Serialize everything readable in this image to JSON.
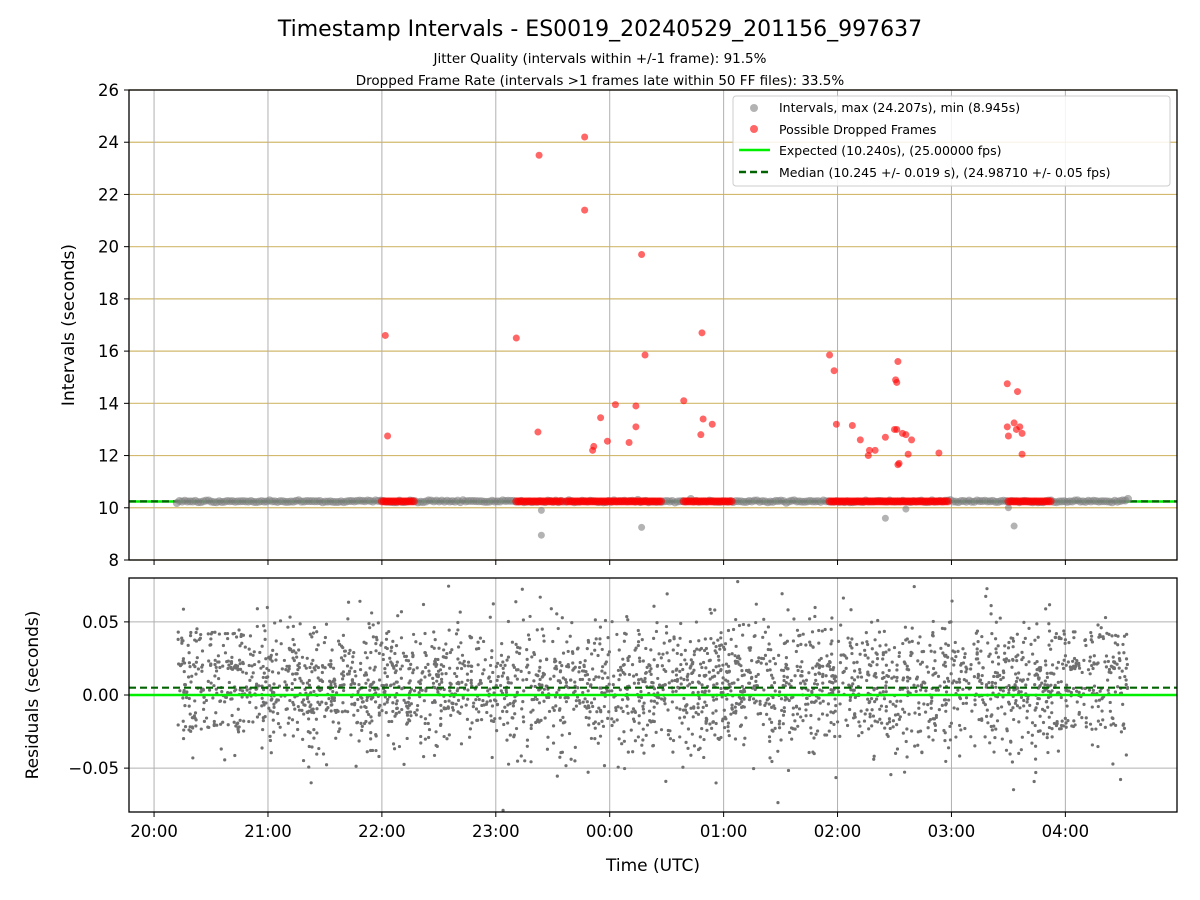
{
  "chart_data": [
    {
      "type": "scatter",
      "title": "Timestamp Intervals - ES0019_20240529_201156_997637",
      "subtitle_lines": [
        "Jitter Quality (intervals within +/-1 frame): 91.5%",
        "Dropped Frame Rate (intervals >1 frames late within 50 FF files): 33.5%"
      ],
      "xlabel": "",
      "ylabel": "Intervals (seconds)",
      "x_unit": "time UTC (hours since 00:00, negative = previous day)",
      "xlim": [
        -4.22,
        4.98
      ],
      "ylim": [
        8,
        26
      ],
      "yticks": [
        8,
        10,
        12,
        14,
        16,
        18,
        20,
        22,
        24,
        26
      ],
      "grid": "vertical gray lines at hour ticks; horizontal tan lines at y ticks",
      "legend_position": "upper right",
      "legend": [
        "Intervals, max (24.207s), min (8.945s)",
        "Possible Dropped Frames",
        "Expected (10.240s), (25.00000 fps)",
        "Median (10.245 +/- 0.019 s), (24.98710 +/- 0.05 fps)"
      ],
      "reference_lines": {
        "expected": 10.24,
        "median": 10.245
      },
      "colors": {
        "intervals": "#808080",
        "dropped": "#ff0000",
        "expected": "#00ee00",
        "median": "#006400",
        "grid_h": "#d2b96e",
        "grid_v": "#b0b0b0"
      },
      "intervals_band": {
        "x_start": -3.8,
        "x_end": 4.55,
        "y": 10.245
      },
      "dropped_band_segments": [
        [
          -2.0,
          -1.72
        ],
        [
          -0.82,
          -0.42
        ],
        [
          -0.38,
          0.45
        ],
        [
          0.65,
          1.07
        ],
        [
          1.93,
          2.97
        ],
        [
          3.5,
          3.87
        ]
      ],
      "outlier_intervals": [
        {
          "x": -0.6,
          "y": 9.9
        },
        {
          "x": -0.6,
          "y": 8.95
        },
        {
          "x": 0.28,
          "y": 9.25
        },
        {
          "x": 2.42,
          "y": 9.6
        },
        {
          "x": 2.6,
          "y": 9.95
        },
        {
          "x": 3.5,
          "y": 10.0
        },
        {
          "x": 3.55,
          "y": 9.3
        }
      ],
      "dropped_points": [
        {
          "x": -1.97,
          "y": 16.6
        },
        {
          "x": -1.95,
          "y": 12.75
        },
        {
          "x": -0.82,
          "y": 16.5
        },
        {
          "x": -0.62,
          "y": 23.5
        },
        {
          "x": -0.63,
          "y": 12.9
        },
        {
          "x": -0.22,
          "y": 24.2
        },
        {
          "x": -0.22,
          "y": 21.4
        },
        {
          "x": -0.15,
          "y": 12.2
        },
        {
          "x": -0.14,
          "y": 12.35
        },
        {
          "x": -0.08,
          "y": 13.45
        },
        {
          "x": -0.02,
          "y": 12.55
        },
        {
          "x": 0.05,
          "y": 13.95
        },
        {
          "x": 0.17,
          "y": 12.5
        },
        {
          "x": 0.23,
          "y": 13.9
        },
        {
          "x": 0.23,
          "y": 13.1
        },
        {
          "x": 0.28,
          "y": 19.7
        },
        {
          "x": 0.31,
          "y": 15.85
        },
        {
          "x": 0.65,
          "y": 14.1
        },
        {
          "x": 0.8,
          "y": 12.8
        },
        {
          "x": 0.81,
          "y": 16.7
        },
        {
          "x": 0.82,
          "y": 13.4
        },
        {
          "x": 0.9,
          "y": 13.2
        },
        {
          "x": 1.93,
          "y": 15.85
        },
        {
          "x": 1.97,
          "y": 15.25
        },
        {
          "x": 1.99,
          "y": 13.2
        },
        {
          "x": 2.13,
          "y": 13.15
        },
        {
          "x": 2.2,
          "y": 12.6
        },
        {
          "x": 2.27,
          "y": 12.0
        },
        {
          "x": 2.28,
          "y": 12.2
        },
        {
          "x": 2.33,
          "y": 12.2
        },
        {
          "x": 2.42,
          "y": 12.7
        },
        {
          "x": 2.51,
          "y": 14.9
        },
        {
          "x": 2.52,
          "y": 14.8
        },
        {
          "x": 2.5,
          "y": 13.0
        },
        {
          "x": 2.52,
          "y": 13.0
        },
        {
          "x": 2.53,
          "y": 15.6
        },
        {
          "x": 2.54,
          "y": 11.7
        },
        {
          "x": 2.53,
          "y": 11.65
        },
        {
          "x": 2.57,
          "y": 12.85
        },
        {
          "x": 2.6,
          "y": 12.8
        },
        {
          "x": 2.62,
          "y": 12.05
        },
        {
          "x": 2.65,
          "y": 12.6
        },
        {
          "x": 2.89,
          "y": 12.1
        },
        {
          "x": 3.49,
          "y": 14.75
        },
        {
          "x": 3.49,
          "y": 13.1
        },
        {
          "x": 3.5,
          "y": 12.75
        },
        {
          "x": 3.55,
          "y": 13.25
        },
        {
          "x": 3.57,
          "y": 13.0
        },
        {
          "x": 3.58,
          "y": 14.45
        },
        {
          "x": 3.6,
          "y": 13.1
        },
        {
          "x": 3.62,
          "y": 12.85
        },
        {
          "x": 3.62,
          "y": 12.05
        }
      ]
    },
    {
      "type": "scatter",
      "title": "",
      "xlabel": "Time (UTC)",
      "ylabel": "Residuals (seconds)",
      "xlim": [
        -4.22,
        4.98
      ],
      "ylim": [
        -0.08,
        0.08
      ],
      "yticks": [
        -0.05,
        0.0,
        0.05
      ],
      "ytick_labels": [
        "−0.05",
        "0.00",
        "0.05"
      ],
      "xticks": [
        -4,
        -3,
        -2,
        -1,
        0,
        1,
        2,
        3,
        4
      ],
      "xtick_labels": [
        "20:00",
        "21:00",
        "22:00",
        "23:00",
        "00:00",
        "01:00",
        "02:00",
        "03:00",
        "04:00"
      ],
      "grid": "gray grid both axes",
      "reference_lines": {
        "expected_residual": 0.0,
        "median_residual": 0.005
      },
      "colors": {
        "points": "#707070",
        "expected": "#00ee00",
        "median": "#006400"
      },
      "residual_distribution": {
        "x_start": -3.8,
        "x_end": 4.55,
        "n_points": 2900,
        "typical_range": [
          -0.05,
          0.075
        ],
        "quantized_levels": [
          -0.02,
          0.0,
          0.02,
          0.04
        ],
        "note": "dense cloud concentrated between -0.03 and 0.05 with banding near -0.02, 0.00, 0.02, 0.04 at the start and end of the night"
      }
    }
  ]
}
